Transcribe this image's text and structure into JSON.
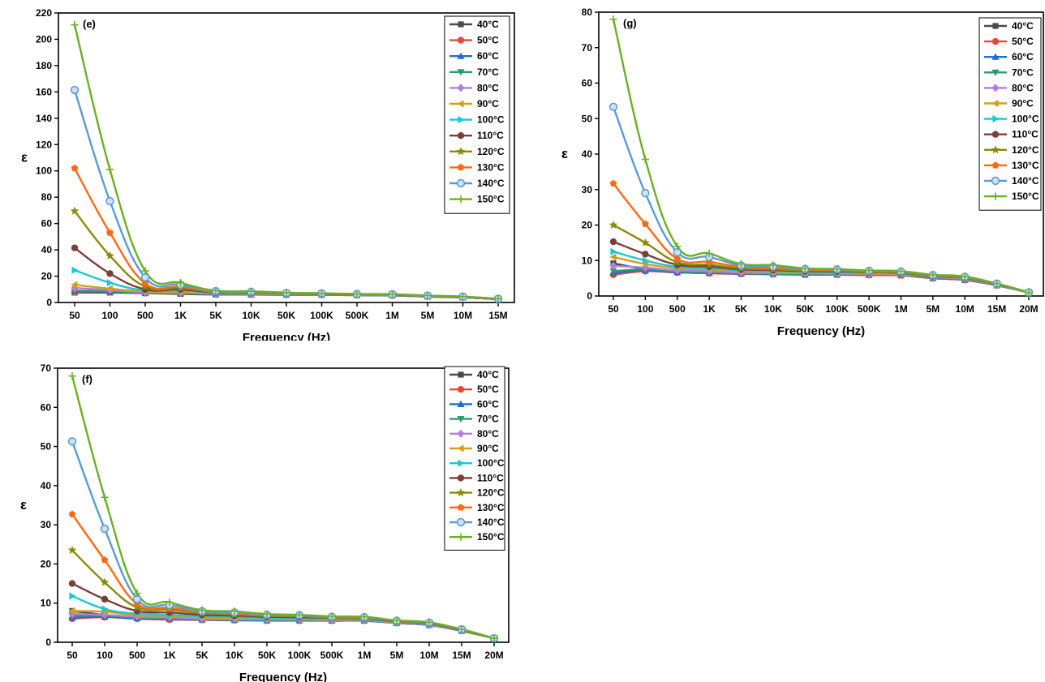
{
  "chart_data": [
    {
      "type": "line",
      "panel_label": "(e)",
      "xlabel": "Frequency (Hz)",
      "ylabel": "ε",
      "categories": [
        "50",
        "100",
        "500",
        "1K",
        "5K",
        "10K",
        "50K",
        "100K",
        "500K",
        "1M",
        "5M",
        "10M",
        "15M"
      ],
      "ylim": [
        0,
        220
      ],
      "yticks": [
        0,
        20,
        40,
        60,
        80,
        100,
        120,
        140,
        160,
        180,
        200,
        220
      ],
      "legend_position": "top-right",
      "series": [
        {
          "name": "40°C",
          "color": "#4a4a4a",
          "marker": "square",
          "values": [
            7.5,
            7.5,
            7,
            6.5,
            6,
            6,
            5.8,
            5.8,
            5.5,
            5.3,
            4.5,
            3.8,
            2.5
          ]
        },
        {
          "name": "50°C",
          "color": "#e8483b",
          "marker": "circle",
          "values": [
            8,
            8,
            7.2,
            6.8,
            6.2,
            6,
            5.8,
            5.8,
            5.5,
            5.3,
            4.5,
            3.8,
            2.5
          ]
        },
        {
          "name": "60°C",
          "color": "#1f6fd1",
          "marker": "triangle-up",
          "values": [
            8.5,
            8.2,
            7.3,
            7,
            6.3,
            6.1,
            5.9,
            5.9,
            5.6,
            5.4,
            4.6,
            3.9,
            2.5
          ]
        },
        {
          "name": "70°C",
          "color": "#2e9c6a",
          "marker": "triangle-down",
          "values": [
            9,
            8.5,
            7.5,
            7.2,
            6.5,
            6.2,
            6,
            6,
            5.7,
            5.5,
            4.7,
            4,
            2.6
          ]
        },
        {
          "name": "80°C",
          "color": "#b07fe0",
          "marker": "diamond",
          "values": [
            11,
            9.5,
            7.8,
            7.5,
            6.7,
            6.4,
            6.2,
            6.1,
            5.8,
            5.6,
            4.8,
            4.1,
            2.6
          ]
        },
        {
          "name": "90°C",
          "color": "#d4a017",
          "marker": "triangle-left",
          "values": [
            13.5,
            10.5,
            8.2,
            8,
            7,
            6.6,
            6.3,
            6.2,
            5.9,
            5.7,
            4.9,
            4.1,
            2.6
          ]
        },
        {
          "name": "100°C",
          "color": "#1ec6d4",
          "marker": "triangle-right",
          "values": [
            24.5,
            15,
            9,
            9,
            7.3,
            7,
            6.5,
            6.4,
            6,
            5.8,
            5,
            4.2,
            2.7
          ]
        },
        {
          "name": "110°C",
          "color": "#7b3f3a",
          "marker": "circle",
          "values": [
            41.5,
            22,
            10,
            10,
            7.6,
            7.2,
            6.7,
            6.5,
            6.1,
            5.9,
            5,
            4.2,
            2.7
          ]
        },
        {
          "name": "120°C",
          "color": "#8a8a0a",
          "marker": "star",
          "values": [
            69.5,
            35.5,
            12,
            11,
            7.9,
            7.5,
            6.9,
            6.6,
            6.2,
            6,
            5.1,
            4.3,
            2.7
          ]
        },
        {
          "name": "130°C",
          "color": "#ff6a13",
          "marker": "pentagon",
          "values": [
            102,
            53,
            14.5,
            12,
            8.2,
            7.8,
            7,
            6.8,
            6.3,
            6.1,
            5.1,
            4.3,
            2.7
          ]
        },
        {
          "name": "140°C",
          "color": "#5b9bd5",
          "marker": "circle-open",
          "values": [
            161.5,
            77,
            19,
            13.5,
            8.6,
            8.1,
            7.2,
            6.9,
            6.4,
            6.2,
            5.2,
            4.4,
            2.8
          ]
        },
        {
          "name": "150°C",
          "color": "#6ab023",
          "marker": "plus",
          "values": [
            211,
            101,
            24,
            15,
            9,
            8.5,
            7.5,
            7,
            6.5,
            6.3,
            5.3,
            4.5,
            2.8
          ]
        }
      ]
    },
    {
      "type": "line",
      "panel_label": "(g)",
      "xlabel": "Frequency (Hz)",
      "ylabel": "ε",
      "categories": [
        "50",
        "100",
        "500",
        "1K",
        "5K",
        "10K",
        "50K",
        "100K",
        "500K",
        "1M",
        "5M",
        "10M",
        "15M",
        "20M"
      ],
      "ylim": [
        0,
        80
      ],
      "yticks": [
        0,
        10,
        20,
        30,
        40,
        50,
        60,
        70,
        80
      ],
      "legend_position": "top-right",
      "series": [
        {
          "name": "40°C",
          "color": "#4a4a4a",
          "marker": "square",
          "values": [
            9.2,
            7.6,
            6.8,
            6.6,
            6.3,
            6.2,
            6,
            6,
            5.9,
            5.8,
            5,
            4.5,
            3,
            1
          ]
        },
        {
          "name": "50°C",
          "color": "#e8483b",
          "marker": "circle",
          "values": [
            6,
            7,
            6.6,
            6.4,
            6.2,
            6.1,
            6,
            6,
            5.9,
            5.8,
            5,
            4.5,
            3,
            1
          ]
        },
        {
          "name": "60°C",
          "color": "#1f6fd1",
          "marker": "triangle-up",
          "values": [
            6.5,
            7.2,
            6.7,
            6.5,
            6.3,
            6.2,
            6.1,
            6.1,
            6,
            5.9,
            5.1,
            4.6,
            3,
            1
          ]
        },
        {
          "name": "70°C",
          "color": "#2e9c6a",
          "marker": "triangle-down",
          "values": [
            7,
            7.5,
            6.9,
            6.7,
            6.4,
            6.3,
            6.2,
            6.2,
            6.1,
            6,
            5.2,
            4.7,
            3.1,
            1
          ]
        },
        {
          "name": "80°C",
          "color": "#b07fe0",
          "marker": "diamond",
          "values": [
            8.5,
            8,
            7.2,
            7,
            6.6,
            6.5,
            6.4,
            6.3,
            6.2,
            6.1,
            5.3,
            4.8,
            3.1,
            1
          ]
        },
        {
          "name": "90°C",
          "color": "#d4a017",
          "marker": "triangle-left",
          "values": [
            11,
            9,
            7.8,
            7.5,
            7,
            6.8,
            6.6,
            6.5,
            6.3,
            6.2,
            5.4,
            4.9,
            3.2,
            1
          ]
        },
        {
          "name": "100°C",
          "color": "#1ec6d4",
          "marker": "triangle-right",
          "values": [
            12.5,
            10,
            8.2,
            7.8,
            7.2,
            7,
            6.8,
            6.7,
            6.5,
            6.4,
            5.5,
            5,
            3.2,
            1
          ]
        },
        {
          "name": "110°C",
          "color": "#7b3f3a",
          "marker": "circle",
          "values": [
            15.3,
            11.8,
            8.8,
            8.3,
            7.5,
            7.3,
            7,
            6.9,
            6.7,
            6.5,
            5.6,
            5.1,
            3.3,
            1
          ]
        },
        {
          "name": "120°C",
          "color": "#8a8a0a",
          "marker": "star",
          "values": [
            20,
            15,
            9.5,
            8.8,
            7.8,
            7.5,
            7.2,
            7.1,
            6.8,
            6.6,
            5.7,
            5.2,
            3.4,
            1
          ]
        },
        {
          "name": "130°C",
          "color": "#ff6a13",
          "marker": "pentagon",
          "values": [
            31.7,
            20.3,
            10.5,
            9.6,
            8.2,
            7.9,
            7.4,
            7.3,
            7,
            6.8,
            5.8,
            5.3,
            3.4,
            1
          ]
        },
        {
          "name": "140°C",
          "color": "#5b9bd5",
          "marker": "circle-open",
          "values": [
            53.3,
            29,
            12.3,
            11,
            8.6,
            8.3,
            7.6,
            7.5,
            7.1,
            6.9,
            5.9,
            5.4,
            3.5,
            1
          ]
        },
        {
          "name": "150°C",
          "color": "#6ab023",
          "marker": "plus",
          "values": [
            78,
            38.5,
            14,
            12,
            9,
            8.7,
            7.8,
            7.6,
            7.2,
            7,
            6,
            5.5,
            3.5,
            1
          ]
        }
      ]
    },
    {
      "type": "line",
      "panel_label": "(f)",
      "xlabel": "Frequency (Hz)",
      "ylabel": "ε",
      "categories": [
        "50",
        "100",
        "500",
        "1K",
        "5K",
        "10K",
        "50K",
        "100K",
        "500K",
        "1M",
        "5M",
        "10M",
        "15M",
        "20M"
      ],
      "ylim": [
        0,
        70
      ],
      "yticks": [
        0,
        10,
        20,
        30,
        40,
        50,
        60,
        70
      ],
      "legend_position": "top-right",
      "series": [
        {
          "name": "40°C",
          "color": "#4a4a4a",
          "marker": "square",
          "values": [
            8,
            7,
            6.3,
            6,
            5.8,
            5.7,
            5.6,
            5.6,
            5.5,
            5.5,
            4.9,
            4.4,
            2.9,
            1
          ]
        },
        {
          "name": "50°C",
          "color": "#e8483b",
          "marker": "circle",
          "values": [
            6,
            6.4,
            6,
            5.8,
            5.7,
            5.6,
            5.5,
            5.5,
            5.5,
            5.5,
            4.9,
            4.4,
            2.9,
            1
          ]
        },
        {
          "name": "60°C",
          "color": "#1f6fd1",
          "marker": "triangle-up",
          "values": [
            6.3,
            6.5,
            6.1,
            5.9,
            5.8,
            5.7,
            5.6,
            5.6,
            5.5,
            5.5,
            4.9,
            4.4,
            2.9,
            1
          ]
        },
        {
          "name": "70°C",
          "color": "#2e9c6a",
          "marker": "triangle-down",
          "values": [
            6.8,
            6.8,
            6.3,
            6.1,
            5.9,
            5.8,
            5.7,
            5.7,
            5.6,
            5.6,
            5,
            4.5,
            3,
            1
          ]
        },
        {
          "name": "80°C",
          "color": "#b07fe0",
          "marker": "diamond",
          "values": [
            7.2,
            7,
            6.5,
            6.3,
            6,
            5.9,
            5.8,
            5.8,
            5.7,
            5.7,
            5,
            4.5,
            3,
            1
          ]
        },
        {
          "name": "90°C",
          "color": "#d4a017",
          "marker": "triangle-left",
          "values": [
            8,
            7.8,
            6.9,
            6.7,
            6.3,
            6.1,
            6,
            5.9,
            5.8,
            5.8,
            5.1,
            4.6,
            3,
            1
          ]
        },
        {
          "name": "100°C",
          "color": "#1ec6d4",
          "marker": "triangle-right",
          "values": [
            11.8,
            8.5,
            7.3,
            7,
            6.6,
            6.4,
            6.2,
            6.1,
            6,
            5.9,
            5.2,
            4.7,
            3.1,
            1
          ]
        },
        {
          "name": "110°C",
          "color": "#7b3f3a",
          "marker": "circle",
          "values": [
            15,
            11,
            8,
            7.6,
            7,
            6.8,
            6.5,
            6.4,
            6.2,
            6.1,
            5.3,
            4.8,
            3.1,
            1
          ]
        },
        {
          "name": "120°C",
          "color": "#8a8a0a",
          "marker": "star",
          "values": [
            23.5,
            15.3,
            8.9,
            8.3,
            7.4,
            7.1,
            6.7,
            6.6,
            6.3,
            6.2,
            5.4,
            4.9,
            3.2,
            1
          ]
        },
        {
          "name": "130°C",
          "color": "#ff6a13",
          "marker": "pentagon",
          "values": [
            32.7,
            21,
            9.8,
            8.8,
            7.7,
            7.4,
            6.9,
            6.8,
            6.4,
            6.3,
            5.5,
            5,
            3.2,
            1
          ]
        },
        {
          "name": "140°C",
          "color": "#5b9bd5",
          "marker": "circle-open",
          "values": [
            51.3,
            29,
            11,
            9.5,
            7.9,
            7.6,
            7,
            6.9,
            6.5,
            6.4,
            5.5,
            5,
            3.3,
            1
          ]
        },
        {
          "name": "150°C",
          "color": "#6ab023",
          "marker": "plus",
          "values": [
            68,
            37,
            12.5,
            10.2,
            8.2,
            7.9,
            7.2,
            7,
            6.6,
            6.5,
            5.6,
            5.1,
            3.3,
            1
          ]
        }
      ]
    }
  ]
}
